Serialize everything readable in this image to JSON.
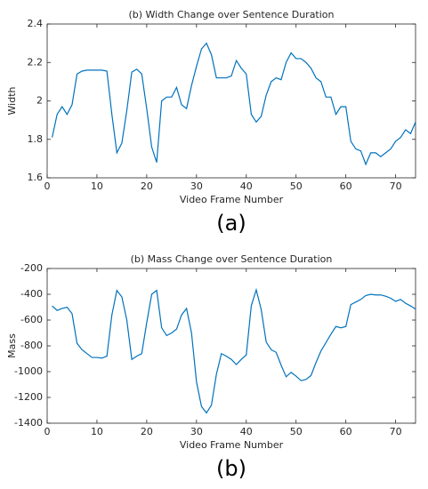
{
  "chart_data": [
    {
      "type": "line",
      "title": "(b) Width Change over Sentence Duration",
      "x_label": "Video Frame Number",
      "y_label": "Width",
      "caption": "(a)",
      "x": [
        1,
        2,
        3,
        4,
        5,
        6,
        7,
        8,
        9,
        10,
        11,
        12,
        13,
        14,
        15,
        16,
        17,
        18,
        19,
        20,
        21,
        22,
        23,
        24,
        25,
        26,
        27,
        28,
        29,
        30,
        31,
        32,
        33,
        34,
        35,
        36,
        37,
        38,
        39,
        40,
        41,
        42,
        43,
        44,
        45,
        46,
        47,
        48,
        49,
        50,
        51,
        52,
        53,
        54,
        55,
        56,
        57,
        58,
        59,
        60,
        61,
        62,
        63,
        64,
        65,
        66,
        67,
        68,
        69,
        70,
        71,
        72,
        73,
        74
      ],
      "series": [
        {
          "name": "Width",
          "color": "#0072bd",
          "values": [
            1.81,
            1.93,
            1.97,
            1.93,
            1.98,
            2.14,
            2.155,
            2.16,
            2.16,
            2.16,
            2.16,
            2.155,
            1.93,
            1.73,
            1.78,
            1.95,
            2.15,
            2.165,
            2.14,
            1.96,
            1.76,
            1.68,
            2.0,
            2.02,
            2.02,
            2.07,
            1.98,
            1.96,
            2.08,
            2.18,
            2.27,
            2.3,
            2.24,
            2.12,
            2.12,
            2.12,
            2.13,
            2.21,
            2.17,
            2.14,
            1.93,
            1.89,
            1.92,
            2.03,
            2.1,
            2.12,
            2.11,
            2.2,
            2.25,
            2.22,
            2.22,
            2.2,
            2.17,
            2.12,
            2.1,
            2.02,
            2.02,
            1.93,
            1.97,
            1.97,
            1.79,
            1.75,
            1.74,
            1.67,
            1.73,
            1.73,
            1.71,
            1.73,
            1.75,
            1.79,
            1.81,
            1.85,
            1.83,
            1.89
          ]
        }
      ],
      "xlim": [
        0,
        74
      ],
      "xticks": [
        0,
        10,
        20,
        30,
        40,
        50,
        60,
        70
      ],
      "ylim": [
        1.6,
        2.4
      ],
      "yticks": [
        1.6,
        1.8,
        2,
        2.2,
        2.4
      ]
    },
    {
      "type": "line",
      "title": "(b) Mass Change over Sentence Duration",
      "x_label": "Video Frame Number",
      "y_label": "Mass",
      "caption": "(b)",
      "x": [
        1,
        2,
        3,
        4,
        5,
        6,
        7,
        8,
        9,
        10,
        11,
        12,
        13,
        14,
        15,
        16,
        17,
        18,
        19,
        20,
        21,
        22,
        23,
        24,
        25,
        26,
        27,
        28,
        29,
        30,
        31,
        32,
        33,
        34,
        35,
        36,
        37,
        38,
        39,
        40,
        41,
        42,
        43,
        44,
        45,
        46,
        47,
        48,
        49,
        50,
        51,
        52,
        53,
        54,
        55,
        56,
        57,
        58,
        59,
        60,
        61,
        62,
        63,
        64,
        65,
        66,
        67,
        68,
        69,
        70,
        71,
        72,
        73,
        74
      ],
      "series": [
        {
          "name": "Mass",
          "color": "#0072bd",
          "values": [
            -490,
            -525,
            -510,
            -500,
            -550,
            -780,
            -830,
            -860,
            -890,
            -890,
            -895,
            -880,
            -560,
            -370,
            -420,
            -600,
            -905,
            -880,
            -860,
            -620,
            -400,
            -370,
            -660,
            -720,
            -700,
            -670,
            -560,
            -510,
            -700,
            -1080,
            -1270,
            -1320,
            -1260,
            -1020,
            -860,
            -880,
            -905,
            -945,
            -905,
            -870,
            -490,
            -365,
            -520,
            -770,
            -830,
            -850,
            -950,
            -1040,
            -1005,
            -1035,
            -1070,
            -1060,
            -1030,
            -930,
            -840,
            -775,
            -710,
            -650,
            -660,
            -650,
            -480,
            -460,
            -440,
            -410,
            -400,
            -405,
            -405,
            -415,
            -430,
            -455,
            -440,
            -470,
            -490,
            -515
          ]
        }
      ],
      "xlim": [
        0,
        74
      ],
      "xticks": [
        0,
        10,
        20,
        30,
        40,
        50,
        60,
        70
      ],
      "ylim": [
        -1400,
        -200
      ],
      "yticks": [
        -1400,
        -1200,
        -1000,
        -800,
        -600,
        -400,
        -200
      ]
    }
  ]
}
